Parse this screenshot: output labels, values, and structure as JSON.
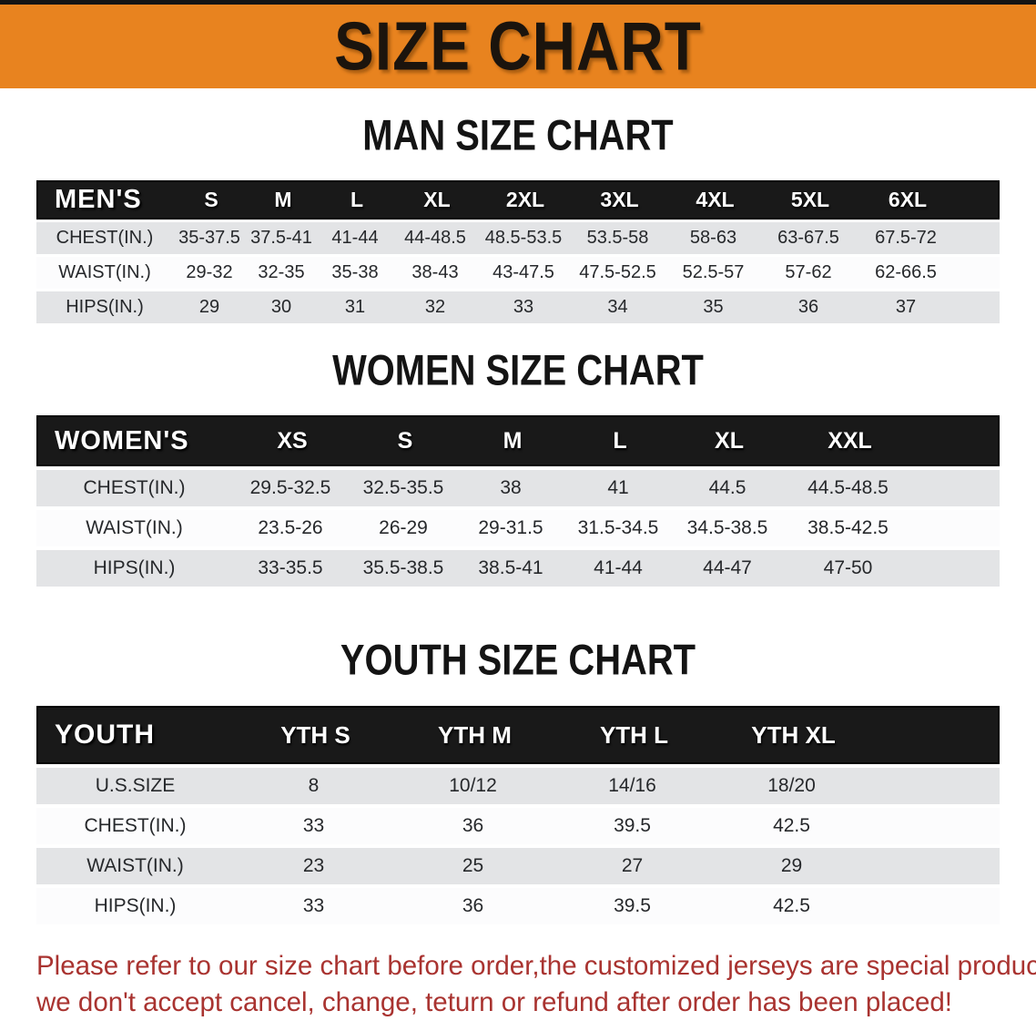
{
  "banner": {
    "title": "SIZE CHART",
    "bg_color": "#E8831F",
    "title_color": "#1b140d"
  },
  "sections": [
    {
      "heading": "MAN SIZE CHART",
      "table": {
        "label": "MEN'S",
        "columns": [
          "S",
          "M",
          "L",
          "XL",
          "2XL",
          "3XL",
          "4XL",
          "5XL",
          "6XL"
        ],
        "rows": [
          {
            "label": "CHEST(IN.)",
            "values": [
              "35-37.5",
              "37.5-41",
              "41-44",
              "44-48.5",
              "48.5-53.5",
              "53.5-58",
              "58-63",
              "63-67.5",
              "67.5-72"
            ]
          },
          {
            "label": "WAIST(IN.)",
            "values": [
              "29-32",
              "32-35",
              "35-38",
              "38-43",
              "43-47.5",
              "47.5-52.5",
              "52.5-57",
              "57-62",
              "62-66.5"
            ]
          },
          {
            "label": "HIPS(IN.)",
            "values": [
              "29",
              "30",
              "31",
              "32",
              "33",
              "34",
              "35",
              "36",
              "37"
            ]
          }
        ]
      }
    },
    {
      "heading": "WOMEN SIZE CHART",
      "table": {
        "label": "WOMEN'S",
        "columns": [
          "XS",
          "S",
          "M",
          "L",
          "XL",
          "XXL"
        ],
        "rows": [
          {
            "label": "CHEST(IN.)",
            "values": [
              "29.5-32.5",
              "32.5-35.5",
              "38",
              "41",
              "44.5",
              "44.5-48.5"
            ]
          },
          {
            "label": "WAIST(IN.)",
            "values": [
              "23.5-26",
              "26-29",
              "29-31.5",
              "31.5-34.5",
              "34.5-38.5",
              "38.5-42.5"
            ]
          },
          {
            "label": "HIPS(IN.)",
            "values": [
              "33-35.5",
              "35.5-38.5",
              "38.5-41",
              "41-44",
              "44-47",
              "47-50"
            ]
          }
        ]
      }
    },
    {
      "heading": "YOUTH SIZE CHART",
      "table": {
        "label": "YOUTH",
        "columns": [
          "YTH S",
          "YTH M",
          "YTH L",
          "YTH XL"
        ],
        "rows": [
          {
            "label": "U.S.SIZE",
            "values": [
              "8",
              "10/12",
              "14/16",
              "18/20"
            ]
          },
          {
            "label": "CHEST(IN.)",
            "values": [
              "33",
              "36",
              "39.5",
              "42.5"
            ]
          },
          {
            "label": "WAIST(IN.)",
            "values": [
              "23",
              "25",
              "27",
              "29"
            ]
          },
          {
            "label": "HIPS(IN.)",
            "values": [
              "33",
              "36",
              "39.5",
              "42.5"
            ]
          }
        ]
      }
    }
  ],
  "disclaimer": {
    "line1": "Please refer to our size chart before order,the customized jerseys are special products,",
    "line2": "we don't accept cancel, change, teturn or refund after order has been placed!",
    "text_color": "#A93330"
  },
  "colors": {
    "banner_orange": "#E8831F",
    "table_header_black": "#191919",
    "stripe_gray": "#E3E4E6",
    "stripe_white": "#FCFCFD"
  }
}
